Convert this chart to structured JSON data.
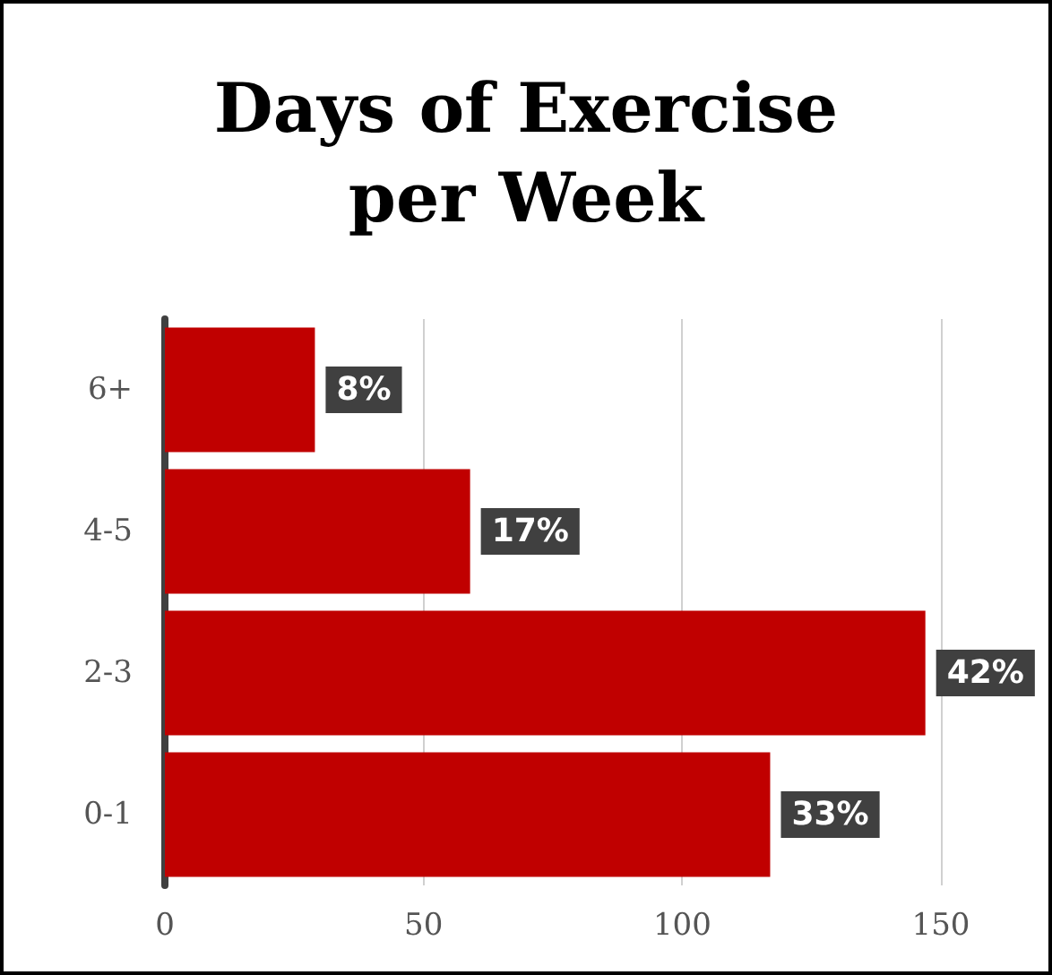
{
  "chart_data": {
    "type": "bar",
    "title": "Days of Exercise per Week",
    "orientation": "horizontal",
    "categories": [
      "6+",
      "4-5",
      "2-3",
      "0-1"
    ],
    "values": [
      29,
      59,
      147,
      117
    ],
    "color": "#c00000",
    "annotations": [
      {
        "text": "8%",
        "x": 29,
        "y": "6+"
      },
      {
        "text": "17%",
        "x": 59,
        "y": "4-5"
      },
      {
        "text": "42%",
        "x": 147,
        "y": "2-3"
      },
      {
        "text": "33%",
        "x": 117,
        "y": "0-1"
      }
    ],
    "xlim": [
      0,
      150
    ],
    "xticks": [
      0,
      50,
      100,
      150
    ],
    "grid": "x"
  }
}
